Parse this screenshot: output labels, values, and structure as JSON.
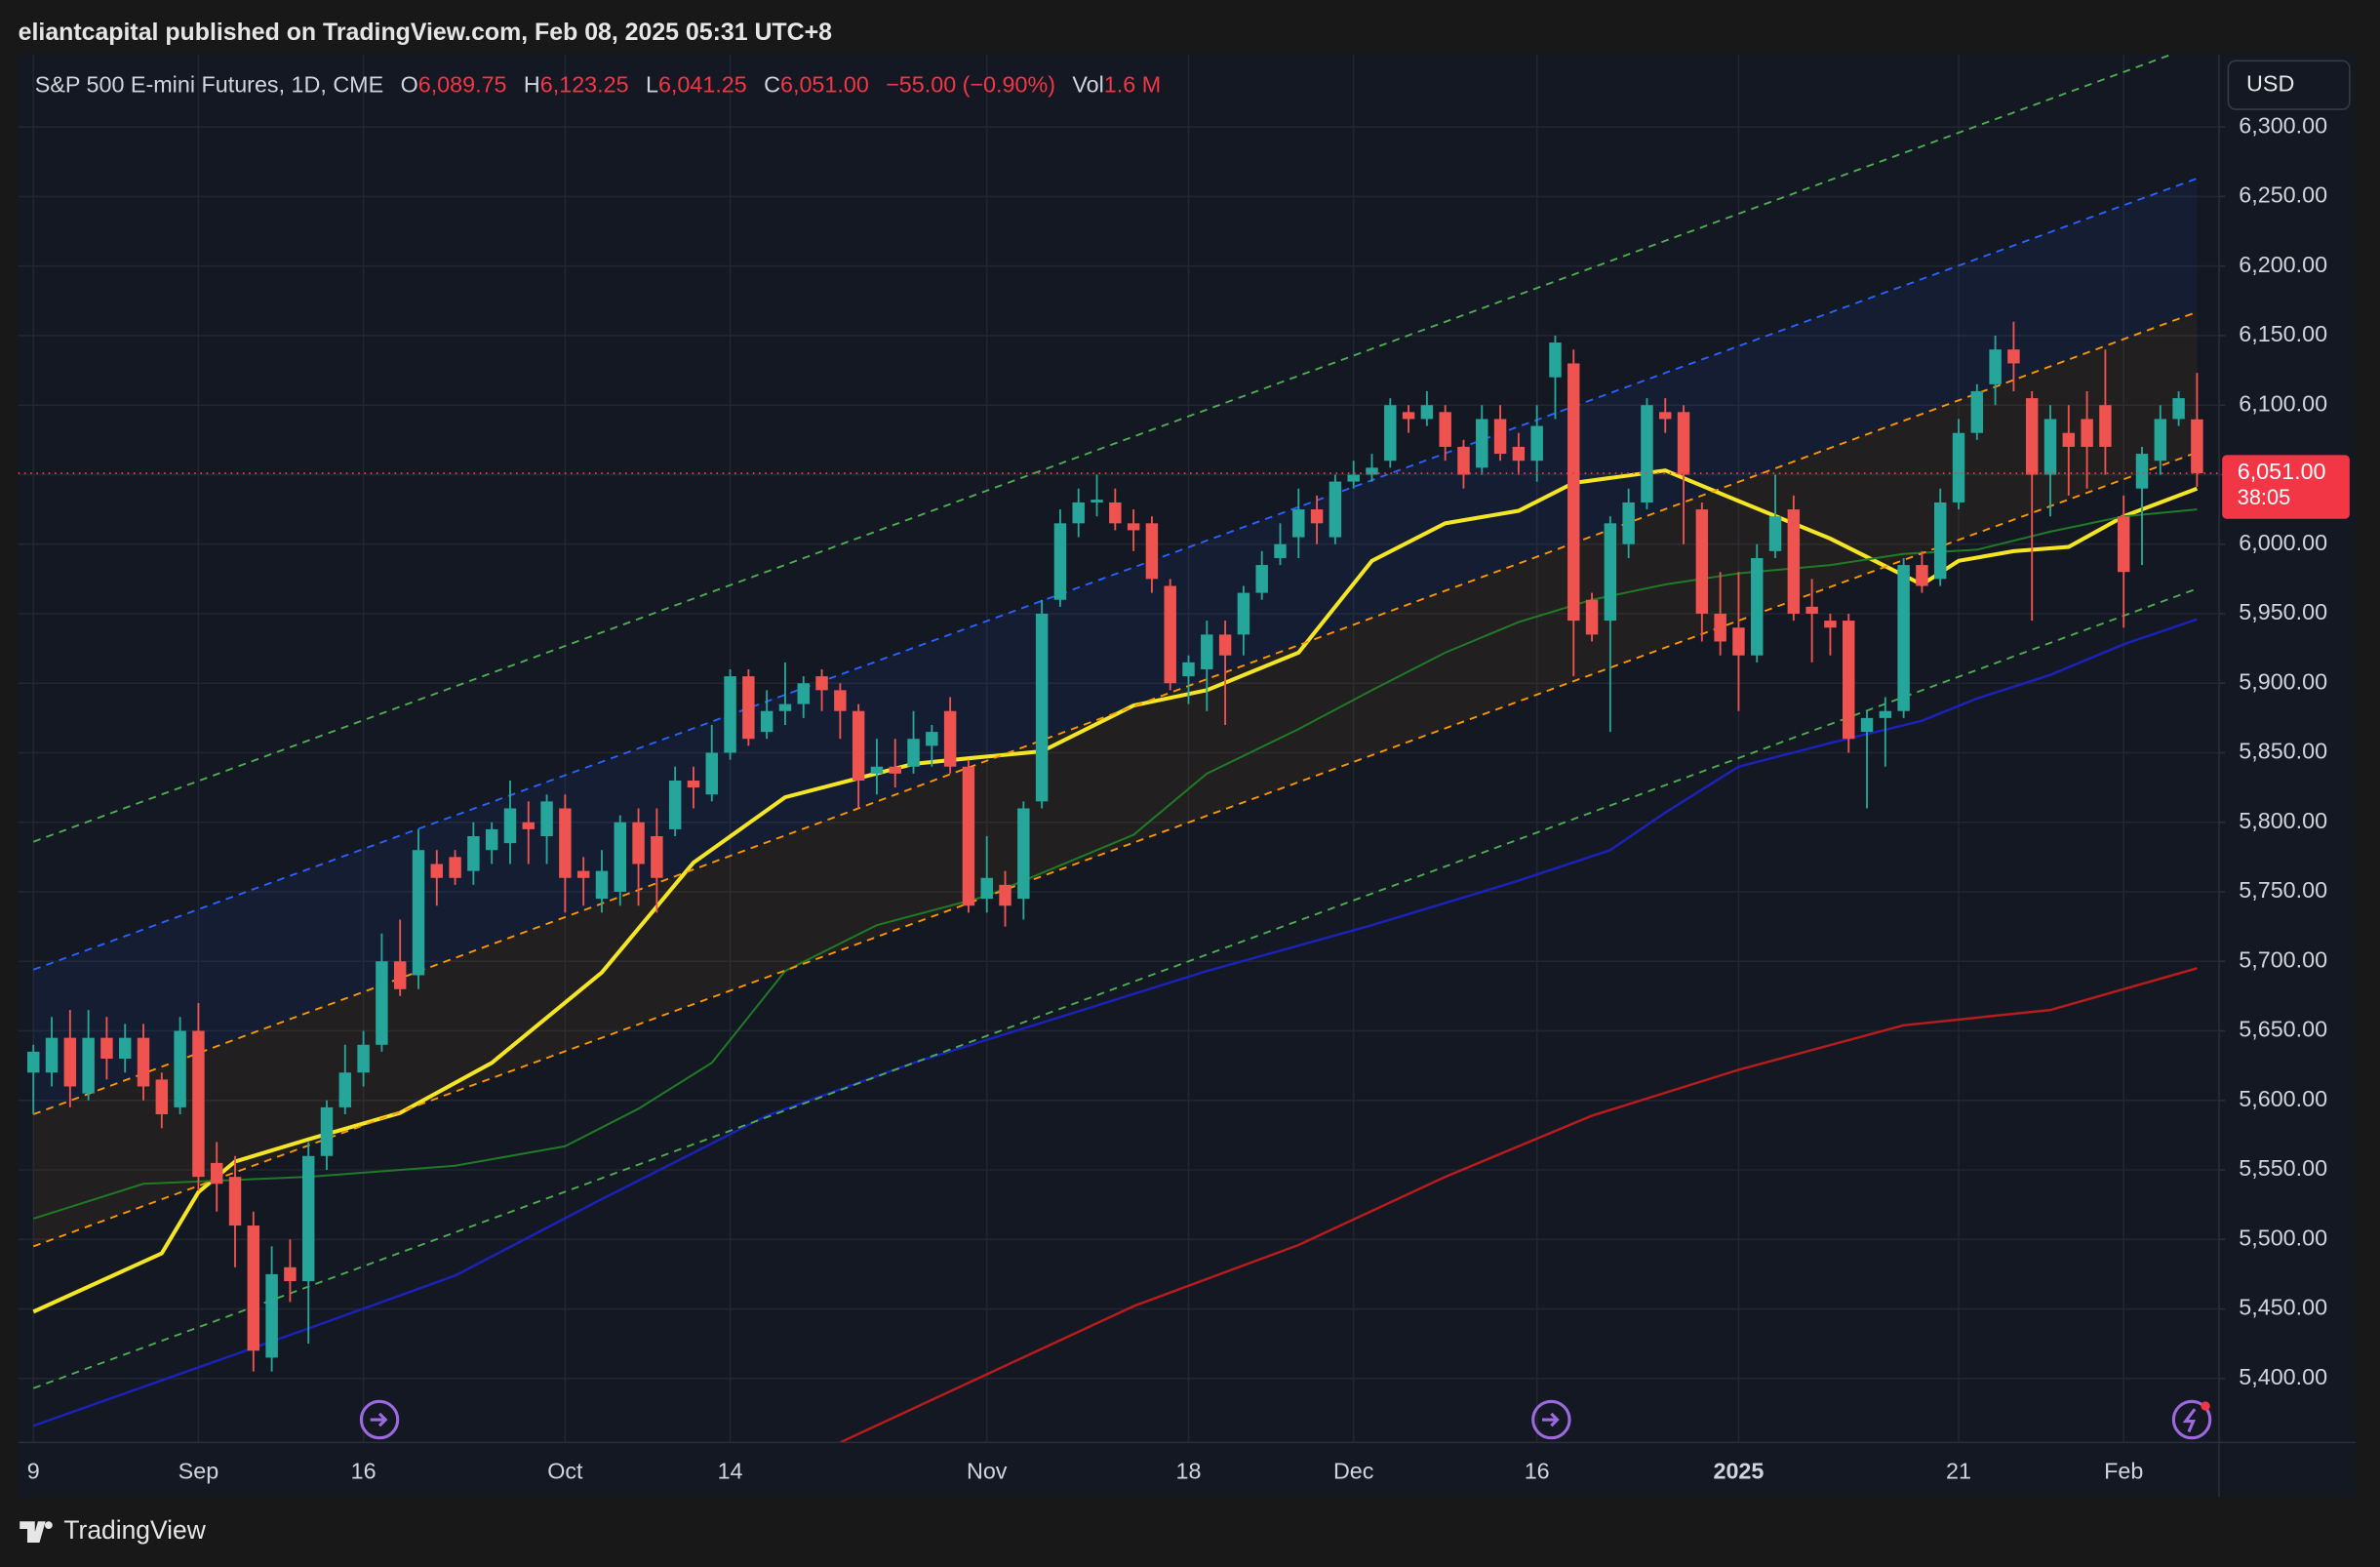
{
  "header": {
    "published": "eliantcapital published on TradingView.com, Feb 08, 2025 05:31 UTC+8",
    "symbol": "S&P 500 E-mini Futures, 1D, CME",
    "o_label": "O",
    "o": "6,089.75",
    "h_label": "H",
    "h": "6,123.25",
    "l_label": "L",
    "l": "6,041.25",
    "c_label": "C",
    "c": "6,051.00",
    "change": "−55.00 (−0.90%)",
    "vol_label": "Vol",
    "vol": "1.6 M",
    "currency": "USD",
    "last_price_label": "6,051.00",
    "countdown": "38:05"
  },
  "footer": {
    "brand": "TradingView"
  },
  "chart_data": {
    "type": "candlestick",
    "up_color": "#26a69a",
    "down_color": "#ef5350",
    "grid": true,
    "categories": [
      "9",
      null,
      null,
      null,
      null,
      null,
      null,
      null,
      null,
      "Sep",
      null,
      null,
      null,
      null,
      null,
      null,
      null,
      null,
      "16",
      null,
      null,
      null,
      null,
      null,
      null,
      null,
      null,
      null,
      null,
      "Oct",
      null,
      null,
      null,
      null,
      null,
      null,
      null,
      null,
      "14",
      null,
      null,
      null,
      null,
      null,
      null,
      null,
      null,
      null,
      null,
      null,
      null,
      null,
      "Nov",
      null,
      null,
      null,
      null,
      null,
      null,
      null,
      null,
      null,
      null,
      "18",
      null,
      null,
      null,
      null,
      null,
      null,
      null,
      null,
      "Dec",
      null,
      null,
      null,
      null,
      null,
      null,
      null,
      null,
      null,
      "16",
      null,
      null,
      null,
      null,
      null,
      null,
      null,
      null,
      null,
      null,
      "2025",
      null,
      null,
      null,
      null,
      null,
      null,
      null,
      null,
      null,
      null,
      null,
      "21",
      null,
      null,
      null,
      null,
      null,
      null,
      null,
      null,
      "Feb",
      null,
      null,
      null,
      null
    ],
    "open": [
      5620,
      5620,
      5645,
      5605,
      5645,
      5630,
      5645,
      5615,
      5595,
      5650,
      5555,
      5545,
      5510,
      5415,
      5480,
      5470,
      5560,
      5595,
      5620,
      5640,
      5700,
      5690,
      5770,
      5775,
      5765,
      5780,
      5785,
      5800,
      5790,
      5810,
      5765,
      5745,
      5750,
      5800,
      5790,
      5795,
      5830,
      5820,
      5850,
      5905,
      5865,
      5880,
      5885,
      5905,
      5895,
      5880,
      5835,
      5840,
      5840,
      5855,
      5880,
      5840,
      5745,
      5755,
      5745,
      5815,
      5960,
      6015,
      6030,
      6030,
      6015,
      6015,
      5970,
      5905,
      5910,
      5935,
      5935,
      5965,
      5990,
      6005,
      6025,
      6005,
      6045,
      6050,
      6060,
      6095,
      6090,
      6095,
      6070,
      6055,
      6090,
      6070,
      6060,
      6120,
      6130,
      5960,
      5945,
      6000,
      6030,
      6095,
      6095,
      6025,
      5950,
      5940,
      5920,
      5995,
      6025,
      5955,
      5945,
      5945,
      5865,
      5875,
      5880,
      5985,
      5975,
      6030,
      6080,
      6115,
      6140,
      6105,
      6050,
      6080,
      6090,
      6100,
      6020,
      6040,
      6060,
      6090,
      6089.75
    ],
    "high": [
      5640,
      5660,
      5665,
      5665,
      5660,
      5655,
      5655,
      5620,
      5660,
      5670,
      5570,
      5560,
      5520,
      5495,
      5500,
      5570,
      5600,
      5640,
      5650,
      5720,
      5730,
      5795,
      5780,
      5780,
      5800,
      5800,
      5830,
      5815,
      5820,
      5820,
      5775,
      5780,
      5805,
      5810,
      5810,
      5840,
      5840,
      5870,
      5910,
      5910,
      5895,
      5915,
      5905,
      5910,
      5900,
      5885,
      5860,
      5860,
      5880,
      5870,
      5890,
      5845,
      5790,
      5765,
      5815,
      5960,
      6025,
      6040,
      6050,
      6040,
      6025,
      6020,
      5975,
      5920,
      5945,
      5945,
      5970,
      5995,
      6015,
      6040,
      6035,
      6050,
      6060,
      6065,
      6105,
      6100,
      6110,
      6100,
      6075,
      6100,
      6100,
      6080,
      6100,
      6150,
      6140,
      5965,
      6020,
      6040,
      6105,
      6105,
      6100,
      6030,
      5980,
      5980,
      6000,
      6050,
      6035,
      5975,
      5950,
      5950,
      5880,
      5890,
      5990,
      5995,
      6040,
      6090,
      6115,
      6150,
      6160,
      6110,
      6100,
      6100,
      6110,
      6140,
      6035,
      6070,
      6100,
      6110,
      6123.25
    ],
    "low": [
      5590,
      5610,
      5595,
      5600,
      5615,
      5620,
      5600,
      5580,
      5590,
      5535,
      5520,
      5480,
      5405,
      5405,
      5455,
      5425,
      5550,
      5590,
      5610,
      5635,
      5675,
      5680,
      5740,
      5755,
      5755,
      5770,
      5770,
      5770,
      5770,
      5735,
      5740,
      5735,
      5740,
      5740,
      5735,
      5790,
      5810,
      5815,
      5845,
      5855,
      5860,
      5870,
      5875,
      5880,
      5860,
      5810,
      5820,
      5825,
      5835,
      5840,
      5835,
      5735,
      5735,
      5725,
      5730,
      5810,
      5955,
      6005,
      6020,
      6010,
      5995,
      5965,
      5895,
      5885,
      5880,
      5870,
      5920,
      5960,
      5985,
      5990,
      6000,
      6000,
      6040,
      6045,
      6055,
      6080,
      6085,
      6060,
      6040,
      6050,
      6060,
      6050,
      6045,
      6090,
      5905,
      5930,
      5865,
      5990,
      6025,
      6080,
      6000,
      5930,
      5920,
      5880,
      5915,
      5990,
      5945,
      5915,
      5920,
      5850,
      5810,
      5840,
      5875,
      5965,
      5970,
      6025,
      6075,
      6100,
      6110,
      5945,
      6020,
      6035,
      6040,
      6050,
      5940,
      5985,
      6050,
      6085,
      6041.25
    ],
    "close": [
      5635,
      5645,
      5610,
      5645,
      5630,
      5645,
      5610,
      5590,
      5650,
      5545,
      5540,
      5510,
      5420,
      5475,
      5470,
      5560,
      5595,
      5620,
      5640,
      5700,
      5680,
      5780,
      5760,
      5760,
      5790,
      5795,
      5810,
      5795,
      5815,
      5760,
      5760,
      5765,
      5800,
      5770,
      5760,
      5830,
      5825,
      5850,
      5905,
      5860,
      5880,
      5885,
      5900,
      5895,
      5880,
      5830,
      5840,
      5835,
      5860,
      5865,
      5840,
      5740,
      5760,
      5740,
      5810,
      5950,
      6015,
      6030,
      6032,
      6015,
      6010,
      5975,
      5900,
      5915,
      5935,
      5920,
      5965,
      5985,
      6000,
      6025,
      6015,
      6045,
      6050,
      6055,
      6100,
      6090,
      6100,
      6070,
      6050,
      6090,
      6065,
      6060,
      6085,
      6145,
      5945,
      5935,
      6015,
      6030,
      6100,
      6090,
      6050,
      5950,
      5930,
      5920,
      5990,
      6020,
      5950,
      5950,
      5940,
      5860,
      5875,
      5880,
      5985,
      5970,
      6030,
      6080,
      6110,
      6140,
      6130,
      6050,
      6090,
      6070,
      6070,
      6070,
      5980,
      6065,
      6090,
      6105,
      6051
    ],
    "ylim": [
      5354,
      6352
    ],
    "yticks": [
      {
        "value": 5400,
        "label": "5,400.00"
      },
      {
        "value": 5450,
        "label": "5,450.00"
      },
      {
        "value": 5500,
        "label": "5,500.00"
      },
      {
        "value": 5550,
        "label": "5,550.00"
      },
      {
        "value": 5600,
        "label": "5,600.00"
      },
      {
        "value": 5650,
        "label": "5,650.00"
      },
      {
        "value": 5700,
        "label": "5,700.00"
      },
      {
        "value": 5750,
        "label": "5,750.00"
      },
      {
        "value": 5800,
        "label": "5,800.00"
      },
      {
        "value": 5850,
        "label": "5,850.00"
      },
      {
        "value": 5900,
        "label": "5,900.00"
      },
      {
        "value": 5950,
        "label": "5,950.00"
      },
      {
        "value": 6000,
        "label": "6,000.00"
      },
      {
        "value": 6050,
        "label": "6,050.00"
      },
      {
        "value": 6100,
        "label": "6,100.00"
      },
      {
        "value": 6150,
        "label": "6,150.00"
      },
      {
        "value": 6200,
        "label": "6,200.00"
      },
      {
        "value": 6250,
        "label": "6,250.00"
      },
      {
        "value": 6300,
        "label": "6,300.00"
      }
    ],
    "lines": [
      {
        "color": "#f5e625",
        "width": 2.6,
        "dash": false,
        "x": [
          0,
          7,
          9,
          11,
          15,
          20,
          25,
          31,
          36,
          41,
          48,
          51,
          55,
          60,
          64,
          69,
          73,
          77,
          81,
          84,
          89,
          93,
          98,
          103,
          105,
          108,
          111,
          114,
          118
        ],
        "values": [
          5448,
          5490,
          5534,
          5556,
          5572,
          5591,
          5627,
          5692,
          5771,
          5818,
          5842,
          5846,
          5851,
          5884,
          5895,
          5922,
          5988,
          6015,
          6024,
          6044,
          6053,
          6031,
          6004,
          5971,
          5988,
          5995,
          5998,
          6020,
          6040
        ]
      },
      {
        "color": "#1f7a26",
        "width": 1.3,
        "dash": false,
        "x": [
          0,
          6,
          15,
          23,
          29,
          33,
          37,
          41,
          46,
          52,
          56,
          60,
          64,
          69,
          73,
          77,
          81,
          85,
          89,
          93,
          98,
          102,
          106,
          110,
          114,
          118
        ],
        "values": [
          5515,
          5540,
          5545,
          5553,
          5567,
          5594,
          5627,
          5693,
          5726,
          5747,
          5769,
          5791,
          5835,
          5867,
          5895,
          5922,
          5944,
          5960,
          5971,
          5979,
          5985,
          5993,
          5996,
          6009,
          6020,
          6025
        ]
      },
      {
        "color": "#1a22b8",
        "width": 1.6,
        "dash": false,
        "x": [
          0,
          15,
          23,
          31,
          40,
          48,
          56,
          64,
          73,
          81,
          86,
          89,
          93,
          98,
          103,
          106,
          110,
          114,
          118
        ],
        "values": [
          5366,
          5436,
          5474,
          5529,
          5589,
          5627,
          5660,
          5693,
          5726,
          5758,
          5780,
          5807,
          5840,
          5857,
          5873,
          5889,
          5906,
          5928,
          5946
        ]
      },
      {
        "color": "#b71c1c",
        "width": 1.6,
        "dash": false,
        "x": [
          44,
          52,
          60,
          69,
          77,
          85,
          93,
          102,
          110,
          118
        ],
        "values": [
          5354,
          5403,
          5452,
          5496,
          5545,
          5589,
          5622,
          5654,
          5665,
          5695
        ]
      },
      {
        "color": "#4caf50",
        "width": 1.2,
        "dash": true,
        "x": [
          0,
          118
        ],
        "values": [
          5786,
          6359
        ]
      },
      {
        "color": "#2962ff",
        "width": 1.2,
        "dash": true,
        "x": [
          0,
          118
        ],
        "values": [
          5694,
          6263
        ]
      },
      {
        "color": "#ff9800",
        "width": 1.2,
        "dash": true,
        "x": [
          0,
          118
        ],
        "values": [
          5590,
          6167
        ]
      },
      {
        "color": "#ff9800",
        "width": 1.2,
        "dash": true,
        "x": [
          0,
          118
        ],
        "values": [
          5495,
          6066
        ]
      },
      {
        "color": "#4caf50",
        "width": 1.2,
        "dash": true,
        "x": [
          0,
          118
        ],
        "values": [
          5393,
          5968
        ]
      }
    ]
  }
}
